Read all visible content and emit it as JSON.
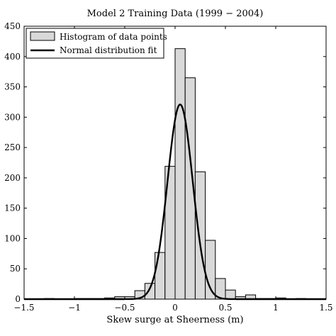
{
  "chart_data": {
    "type": "bar",
    "title": "Model 2 Training Data (1999 − 2004)",
    "xlabel": "Skew surge at Sheerness (m)",
    "ylabel": "",
    "xlim": [
      -1.5,
      1.5
    ],
    "ylim": [
      0,
      450
    ],
    "xticks": [
      -1.5,
      -1,
      -0.5,
      0,
      0.5,
      1,
      1.5
    ],
    "xtick_labels": [
      "−1.5",
      "−1",
      "−0.5",
      "0",
      "0.5",
      "1",
      "1.5"
    ],
    "yticks": [
      0,
      50,
      100,
      150,
      200,
      250,
      300,
      350,
      400,
      450
    ],
    "ytick_labels": [
      "0",
      "50",
      "100",
      "150",
      "200",
      "250",
      "300",
      "350",
      "400",
      "450"
    ],
    "grid": false,
    "legend_position": "top-left",
    "bin_width": 0.1,
    "bin_centers": [
      -1.25,
      -1.15,
      -1.05,
      -0.95,
      -0.85,
      -0.75,
      -0.65,
      -0.55,
      -0.45,
      -0.35,
      -0.25,
      -0.15,
      -0.05,
      0.05,
      0.15,
      0.25,
      0.35,
      0.45,
      0.55,
      0.65,
      0.75,
      0.85,
      0.95,
      1.05,
      1.15,
      1.25
    ],
    "bin_counts": [
      1,
      0,
      0,
      1,
      1,
      1,
      2,
      4,
      4,
      14,
      26,
      77,
      219,
      413,
      365,
      210,
      97,
      34,
      15,
      4,
      7,
      1,
      1,
      2,
      0,
      1
    ],
    "series": [
      {
        "name": "Histogram of data points",
        "kind": "histogram"
      },
      {
        "name": "Normal distribution fit",
        "kind": "line",
        "mean": 0.05,
        "std": 0.125,
        "peak": 321
      }
    ]
  }
}
